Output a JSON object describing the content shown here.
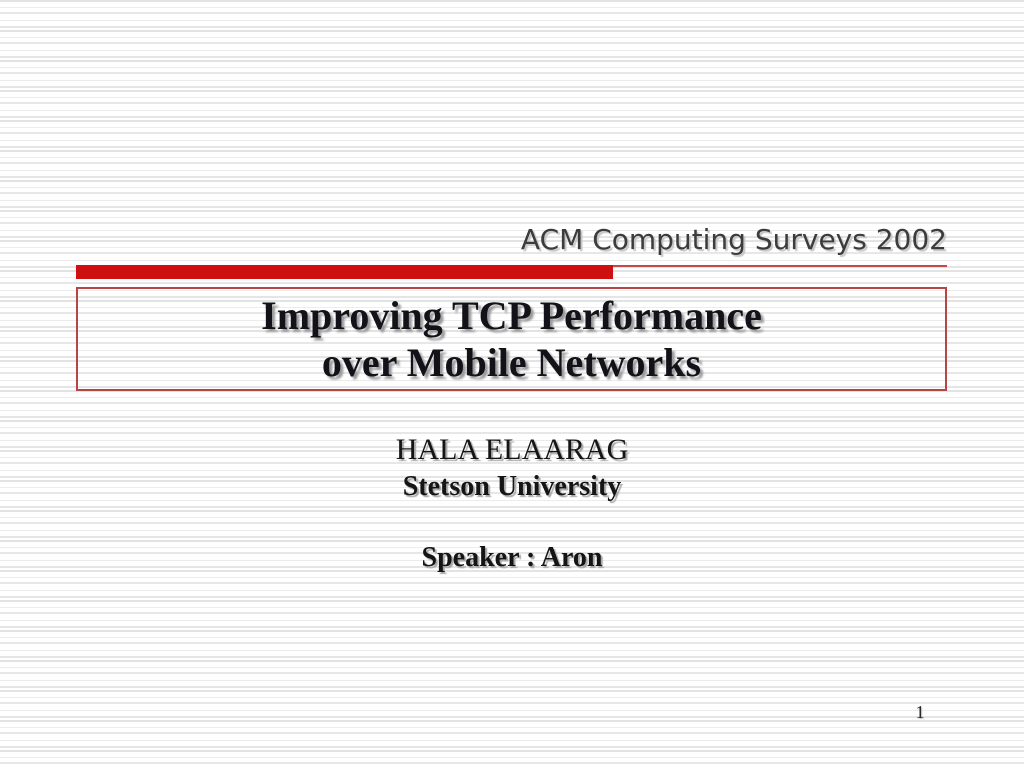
{
  "slide": {
    "header": {
      "label": "ACM Computing Surveys 2002"
    },
    "title": {
      "line1": "Improving TCP Performance",
      "line2": "over Mobile Networks"
    },
    "subtitle": {
      "author": "HALA ELAARAG",
      "affiliation": "Stetson University",
      "speaker": "Speaker : Aron"
    },
    "footer": {
      "page_number": "1"
    },
    "colors": {
      "accent-bar": "#ce1010",
      "accent-line": "#c24a4a",
      "box-border": "#b64545",
      "heading-text": "#3c3c3c",
      "title-text": "#121218",
      "body-text": "#151515",
      "page-number": "#2a2a2a"
    }
  }
}
